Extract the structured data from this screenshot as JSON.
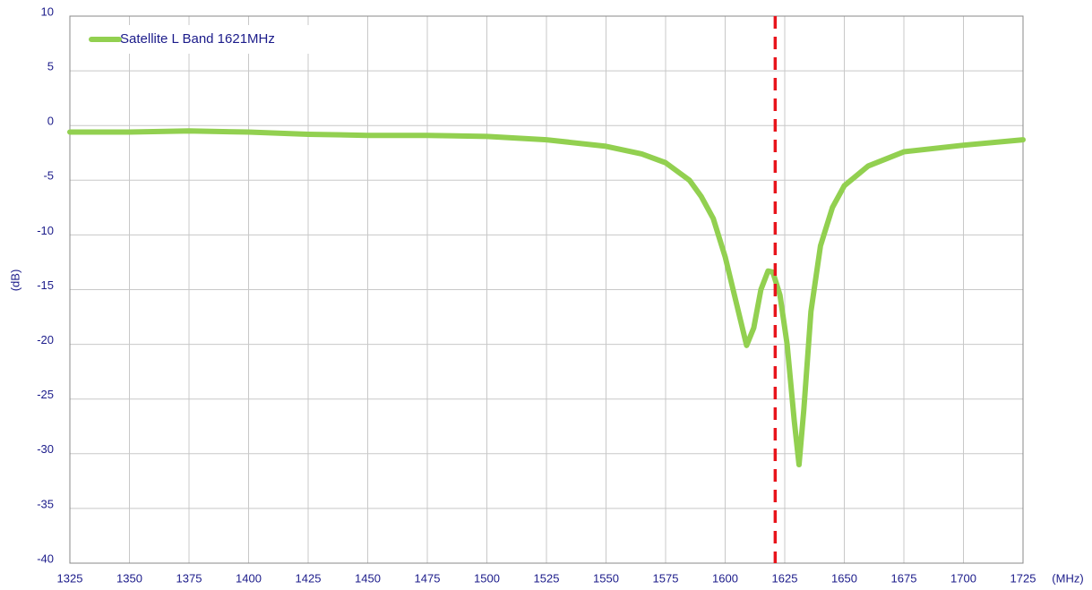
{
  "chart_data": {
    "type": "line",
    "y_label": "(dB)",
    "x_label": "(MHz)",
    "x": [
      1325,
      1350,
      1375,
      1400,
      1425,
      1450,
      1475,
      1500,
      1525,
      1550,
      1565,
      1575,
      1585,
      1590,
      1595,
      1600,
      1605,
      1609,
      1612,
      1615,
      1618,
      1620,
      1623,
      1626,
      1629,
      1631,
      1633,
      1636,
      1640,
      1645,
      1650,
      1660,
      1675,
      1700,
      1725
    ],
    "series": [
      {
        "name": "Satellite L Band 1621MHz",
        "color": "#92d050",
        "values": [
          -0.6,
          -0.6,
          -0.5,
          -0.6,
          -0.8,
          -0.9,
          -0.9,
          -1.0,
          -1.3,
          -1.9,
          -2.6,
          -3.4,
          -5.0,
          -6.5,
          -8.5,
          -12,
          -16.5,
          -20.1,
          -18.5,
          -15,
          -13.3,
          -13.4,
          -15.5,
          -20,
          -27,
          -31,
          -26,
          -17,
          -11,
          -7.5,
          -5.5,
          -3.7,
          -2.4,
          -1.8,
          -1.3
        ]
      }
    ],
    "xlim": [
      1325,
      1725
    ],
    "xticks": [
      1325,
      1350,
      1375,
      1400,
      1425,
      1450,
      1475,
      1500,
      1525,
      1550,
      1575,
      1600,
      1625,
      1650,
      1675,
      1700,
      1725
    ],
    "ylim": [
      -40,
      10
    ],
    "yticks": [
      -40,
      -35,
      -30,
      -25,
      -20,
      -15,
      -10,
      -5,
      0,
      5,
      10
    ],
    "marker_x": 1621,
    "marker_color": "#e8141b",
    "grid": true,
    "legend": "upper left"
  }
}
